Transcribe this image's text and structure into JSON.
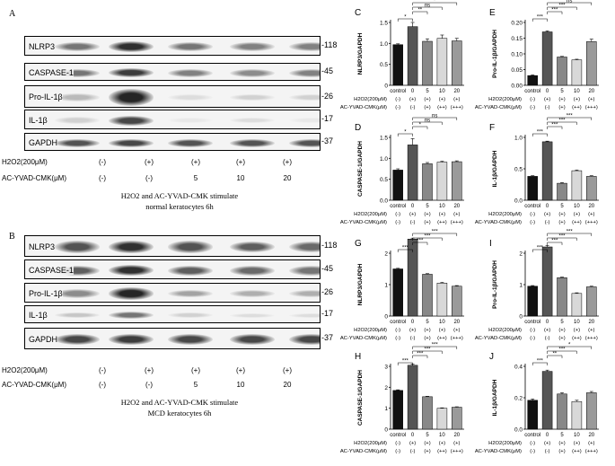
{
  "western_blots": [
    {
      "id": "A",
      "rows": [
        {
          "label": "NLRP3",
          "mw": "118"
        },
        {
          "label": "CASPASE-1",
          "mw": "45"
        },
        {
          "label": "Pro-IL-1β",
          "mw": "26"
        },
        {
          "label": "IL-1β",
          "mw": "17"
        },
        {
          "label": "GAPDH",
          "mw": "37"
        }
      ],
      "h2o2_label": "H2O2(200μM)",
      "h2o2_values": [
        "(-)",
        "(+)",
        "(+)",
        "(+)",
        "(+)"
      ],
      "ac_label": "AC-YVAD-CMK(μM)",
      "ac_values": [
        "(-)",
        "(-)",
        "5",
        "10",
        "20"
      ],
      "caption_line1": "H2O2 and AC-YVAD-CMK stimulate",
      "caption_line2": "normal keratocytes 6h"
    },
    {
      "id": "B",
      "rows": [
        {
          "label": "NLRP3",
          "mw": "118"
        },
        {
          "label": "CASPASE-1",
          "mw": "45"
        },
        {
          "label": "Pro-IL-1β",
          "mw": "26"
        },
        {
          "label": "IL-1β",
          "mw": "17"
        },
        {
          "label": "GAPDH",
          "mw": "37"
        }
      ],
      "h2o2_label": "H2O2(200μM)",
      "h2o2_values": [
        "(-)",
        "(+)",
        "(+)",
        "(+)",
        "(+)"
      ],
      "ac_label": "AC-YVAD-CMK(μM)",
      "ac_values": [
        "(-)",
        "(-)",
        "5",
        "10",
        "20"
      ],
      "caption_line1": "H2O2 and AC-YVAD-CMK stimulate",
      "caption_line2": "MCD keratocytes 6h"
    }
  ],
  "chart_data": [
    {
      "id": "C",
      "type": "bar",
      "ylabel": "NLRP3/GAPDH",
      "ylim": [
        0,
        1.5
      ],
      "yticks": [
        "0",
        "0.5",
        "1.0",
        "1.5"
      ],
      "categories": [
        "control",
        "0",
        "5",
        "10",
        "20"
      ],
      "values": [
        0.97,
        1.4,
        1.05,
        1.12,
        1.06
      ],
      "errors": [
        0.02,
        0.1,
        0.06,
        0.08,
        0.06
      ],
      "sig": [
        {
          "from": 0,
          "to": 1,
          "label": "*"
        },
        {
          "from": 1,
          "to": 2,
          "label": "**"
        },
        {
          "from": 1,
          "to": 3,
          "label": "ns"
        },
        {
          "from": 1,
          "to": 4,
          "label": "*"
        }
      ],
      "h2o2_label": "H2O2(200μM)",
      "h2o2_values": [
        "(-)",
        "(+)",
        "(+)",
        "(+)",
        "(+)"
      ],
      "ac_label": "AC-YVAD-CMK(μM)",
      "ac_values": [
        "(-)",
        "(-)",
        "(+)",
        "(++)",
        "(+++)"
      ]
    },
    {
      "id": "E",
      "type": "bar",
      "ylabel": "Pro-IL-1β/GAPDH",
      "ylim": [
        0,
        0.2
      ],
      "yticks": [
        "0.00",
        "0.05",
        "0.10",
        "0.15",
        "0.20"
      ],
      "categories": [
        "control",
        "0",
        "5",
        "10",
        "20"
      ],
      "values": [
        0.031,
        0.17,
        0.09,
        0.081,
        0.139
      ],
      "errors": [
        0.002,
        0.003,
        0.002,
        0.002,
        0.008
      ],
      "sig": [
        {
          "from": 0,
          "to": 1,
          "label": "***"
        },
        {
          "from": 1,
          "to": 2,
          "label": "***"
        },
        {
          "from": 1,
          "to": 3,
          "label": "***"
        },
        {
          "from": 1,
          "to": 4,
          "label": "ns"
        }
      ],
      "h2o2_label": "H2O2(200μM)",
      "h2o2_values": [
        "(-)",
        "(+)",
        "(+)",
        "(+)",
        "(+)"
      ],
      "ac_label": "AC-YVAD-CMK(μM)",
      "ac_values": [
        "(-)",
        "(-)",
        "(+)",
        "(++)",
        "(+++)"
      ]
    },
    {
      "id": "D",
      "type": "bar",
      "ylabel": "CASPASE-1/GAPDH",
      "ylim": [
        0,
        1.5
      ],
      "yticks": [
        "0.0",
        "0.5",
        "1.0",
        "1.5"
      ],
      "categories": [
        "control",
        "0",
        "5",
        "10",
        "20"
      ],
      "values": [
        0.72,
        1.32,
        0.87,
        0.91,
        0.92
      ],
      "errors": [
        0.03,
        0.15,
        0.03,
        0.02,
        0.02
      ],
      "sig": [
        {
          "from": 0,
          "to": 1,
          "label": "*"
        },
        {
          "from": 1,
          "to": 2,
          "label": "*"
        },
        {
          "from": 1,
          "to": 3,
          "label": "ns"
        },
        {
          "from": 1,
          "to": 4,
          "label": "ns"
        }
      ],
      "h2o2_label": "H2O2(200μM)",
      "h2o2_values": [
        "(-)",
        "(+)",
        "(+)",
        "(+)",
        "(+)"
      ],
      "ac_label": "AC-YVAD-CMK(μM)",
      "ac_values": [
        "(-)",
        "(-)",
        "(+)",
        "(++)",
        "(+++)"
      ]
    },
    {
      "id": "F",
      "type": "bar",
      "ylabel": "IL-1β/GAPDH",
      "ylim": [
        0,
        1.0
      ],
      "yticks": [
        "0.0",
        "0.5",
        "1.0"
      ],
      "categories": [
        "control",
        "0",
        "5",
        "10",
        "20"
      ],
      "values": [
        0.38,
        0.93,
        0.27,
        0.47,
        0.38
      ],
      "errors": [
        0.01,
        0.01,
        0.01,
        0.01,
        0.01
      ],
      "sig": [
        {
          "from": 0,
          "to": 1,
          "label": "***"
        },
        {
          "from": 1,
          "to": 2,
          "label": "***"
        },
        {
          "from": 1,
          "to": 3,
          "label": "***"
        },
        {
          "from": 1,
          "to": 4,
          "label": "***"
        }
      ],
      "h2o2_label": "H2O2(200μM)",
      "h2o2_values": [
        "(-)",
        "(+)",
        "(+)",
        "(+)",
        "(+)"
      ],
      "ac_label": "AC-YVAD-CMK(μM)",
      "ac_values": [
        "(-)",
        "(-)",
        "(+)",
        "(++)",
        "(+++)"
      ]
    },
    {
      "id": "G",
      "type": "bar",
      "ylabel": "NLRP3/GAPDH",
      "ylim": [
        0,
        2
      ],
      "yticks": [
        "0",
        "1",
        "2"
      ],
      "categories": [
        "control",
        "0",
        "5",
        "10",
        "20"
      ],
      "values": [
        1.5,
        2.45,
        1.33,
        1.05,
        0.95
      ],
      "errors": [
        0.02,
        0.03,
        0.02,
        0.02,
        0.02
      ],
      "sig": [
        {
          "from": 0,
          "to": 1,
          "label": "***"
        },
        {
          "from": 1,
          "to": 2,
          "label": "***"
        },
        {
          "from": 1,
          "to": 3,
          "label": "***"
        },
        {
          "from": 1,
          "to": 4,
          "label": "***"
        }
      ],
      "h2o2_label": "H2O2(200μM)",
      "h2o2_values": [
        "(-)",
        "(+)",
        "(+)",
        "(+)",
        "(+)"
      ],
      "ac_label": "AC-YVAD-CMK(μM)",
      "ac_values": [
        "(-)",
        "(-)",
        "(+)",
        "(++)",
        "(+++)"
      ]
    },
    {
      "id": "I",
      "type": "bar",
      "ylabel": "Pro-IL-1β/GAPDH",
      "ylim": [
        0,
        2
      ],
      "yticks": [
        "0",
        "1",
        "2"
      ],
      "categories": [
        "control",
        "0",
        "5",
        "10",
        "20"
      ],
      "values": [
        0.95,
        2.2,
        1.22,
        0.72,
        0.93
      ],
      "errors": [
        0.02,
        0.05,
        0.02,
        0.02,
        0.02
      ],
      "sig": [
        {
          "from": 0,
          "to": 1,
          "label": "***"
        },
        {
          "from": 1,
          "to": 2,
          "label": "***"
        },
        {
          "from": 1,
          "to": 3,
          "label": "***"
        },
        {
          "from": 1,
          "to": 4,
          "label": "***"
        }
      ],
      "h2o2_label": "H2O2(200μM)",
      "h2o2_values": [
        "(-)",
        "(+)",
        "(+)",
        "(+)",
        "(+)"
      ],
      "ac_label": "AC-YVAD-CMK(μM)",
      "ac_values": [
        "(-)",
        "(-)",
        "(+)",
        "(++)",
        "(+++)"
      ]
    },
    {
      "id": "H",
      "type": "bar",
      "ylabel": "CASPASE-1/GAPDH",
      "ylim": [
        0,
        3
      ],
      "yticks": [
        "0",
        "1",
        "2",
        "3"
      ],
      "categories": [
        "control",
        "0",
        "5",
        "10",
        "20"
      ],
      "values": [
        1.85,
        3.05,
        1.55,
        1.0,
        1.05
      ],
      "errors": [
        0.03,
        0.06,
        0.02,
        0.02,
        0.02
      ],
      "sig": [
        {
          "from": 0,
          "to": 1,
          "label": "***"
        },
        {
          "from": 1,
          "to": 2,
          "label": "***"
        },
        {
          "from": 1,
          "to": 3,
          "label": "***"
        },
        {
          "from": 1,
          "to": 4,
          "label": "***"
        }
      ],
      "h2o2_label": "H2O2(200μM)",
      "h2o2_values": [
        "(-)",
        "(+)",
        "(+)",
        "(+)",
        "(+)"
      ],
      "ac_label": "AC-YVAD-CMK(μM)",
      "ac_values": [
        "(-)",
        "(-)",
        "(+)",
        "(++)",
        "(+++)"
      ]
    },
    {
      "id": "J",
      "type": "bar",
      "ylabel": "IL-1β/GAPDH",
      "ylim": [
        0,
        0.5
      ],
      "yticks": [
        "0.0",
        "0.2",
        "0.4"
      ],
      "categories": [
        "control",
        "0",
        "5",
        "10",
        "20"
      ],
      "values": [
        0.23,
        0.46,
        0.28,
        0.22,
        0.29
      ],
      "errors": [
        0.01,
        0.01,
        0.01,
        0.01,
        0.01
      ],
      "sig": [
        {
          "from": 0,
          "to": 1,
          "label": "***"
        },
        {
          "from": 1,
          "to": 2,
          "label": "**"
        },
        {
          "from": 1,
          "to": 3,
          "label": "***"
        },
        {
          "from": 1,
          "to": 4,
          "label": "*"
        }
      ],
      "h2o2_label": "H2O2(200μM)",
      "h2o2_values": [
        "(-)",
        "(+)",
        "(+)",
        "(+)",
        "(+)"
      ],
      "ac_label": "AC-YVAD-CMK(μM)",
      "ac_values": [
        "(-)",
        "(-)",
        "(+)",
        "(++)",
        "(+++)"
      ]
    }
  ],
  "colors": {
    "bar_control": "#111111",
    "bar_0": "#555555",
    "bar_5": "#888888",
    "bar_10": "#d8d8d8",
    "bar_20": "#9a9a9a"
  }
}
